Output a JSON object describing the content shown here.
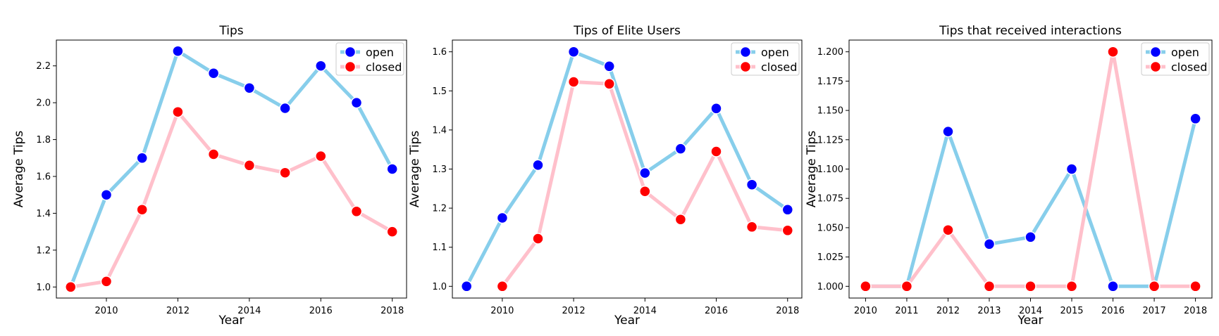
{
  "chart_data": [
    {
      "type": "line",
      "title": "Tips",
      "xlabel": "Year",
      "ylabel": "Average Tips",
      "x": [
        2009,
        2010,
        2011,
        2012,
        2013,
        2014,
        2015,
        2016,
        2017,
        2018
      ],
      "xticks": [
        "2010",
        "2012",
        "2014",
        "2016",
        "2018"
      ],
      "yticks": [
        "1.0",
        "1.2",
        "1.4",
        "1.6",
        "1.8",
        "2.0",
        "2.2"
      ],
      "xlim": [
        2008.6,
        2018.4
      ],
      "ylim": [
        0.94,
        2.34
      ],
      "legend": "top-right",
      "series": [
        {
          "name": "open",
          "line_color": "#87CEEB",
          "marker_color": "#0000FF",
          "values": [
            1.0,
            1.5,
            1.7,
            2.28,
            2.16,
            2.08,
            1.97,
            2.2,
            2.0,
            1.64
          ]
        },
        {
          "name": "closed",
          "line_color": "#FFC0CB",
          "marker_color": "#FF0000",
          "values": [
            1.0,
            1.03,
            1.42,
            1.95,
            1.72,
            1.66,
            1.62,
            1.71,
            1.41,
            1.3
          ]
        }
      ]
    },
    {
      "type": "line",
      "title": "Tips of Elite Users",
      "xlabel": "Year",
      "ylabel": "Average Tips",
      "x": [
        2009,
        2010,
        2011,
        2012,
        2013,
        2014,
        2015,
        2016,
        2017,
        2018
      ],
      "xticks": [
        "2010",
        "2012",
        "2014",
        "2016",
        "2018"
      ],
      "yticks": [
        "1.0",
        "1.1",
        "1.2",
        "1.3",
        "1.4",
        "1.5",
        "1.6"
      ],
      "xlim": [
        2008.6,
        2018.4
      ],
      "ylim": [
        0.97,
        1.63
      ],
      "legend": "top-right",
      "series": [
        {
          "name": "open",
          "line_color": "#87CEEB",
          "marker_color": "#0000FF",
          "values": [
            1.0,
            1.175,
            1.31,
            1.6,
            1.563,
            1.29,
            1.352,
            1.455,
            1.26,
            1.196
          ]
        },
        {
          "name": "closed",
          "line_color": "#FFC0CB",
          "marker_color": "#FF0000",
          "values": [
            null,
            1.0,
            1.122,
            1.523,
            1.518,
            1.243,
            1.171,
            1.345,
            1.152,
            1.143
          ]
        }
      ]
    },
    {
      "type": "line",
      "title": "Tips that received interactions",
      "xlabel": "Year",
      "ylabel": "Average Tips",
      "x": [
        2010,
        2011,
        2012,
        2013,
        2014,
        2015,
        2016,
        2017,
        2018
      ],
      "xticks": [
        "2010",
        "2011",
        "2012",
        "2013",
        "2014",
        "2015",
        "2016",
        "2017",
        "2018"
      ],
      "yticks": [
        "1.000",
        "1.025",
        "1.050",
        "1.075",
        "1.100",
        "1.125",
        "1.150",
        "1.175",
        "1.200"
      ],
      "xlim": [
        2009.6,
        2018.4
      ],
      "ylim": [
        0.99,
        1.21
      ],
      "legend": "top-right",
      "series": [
        {
          "name": "open",
          "line_color": "#87CEEB",
          "marker_color": "#0000FF",
          "values": [
            1.0,
            1.0,
            1.132,
            1.036,
            1.042,
            1.1,
            1.0,
            1.0,
            1.143
          ]
        },
        {
          "name": "closed",
          "line_color": "#FFC0CB",
          "marker_color": "#FF0000",
          "values": [
            1.0,
            1.0,
            1.048,
            1.0,
            1.0,
            1.0,
            1.2,
            1.0,
            1.0
          ]
        }
      ]
    }
  ]
}
